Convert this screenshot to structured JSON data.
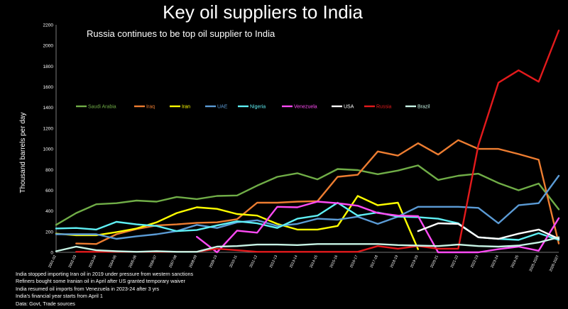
{
  "title": "Key oil suppliers to India",
  "subtitle": "Russia continues to be top oil supplier to India",
  "notes": [
    "India stopped importing Iran oil in 2019 under pressure from western sanctions",
    "Refiners bought some Iranian oil in April after US granted temporary waiver",
    "India resumed oil imports from Venezuela in 2023-24 after 3 yrs",
    "India's financial year starts from April 1",
    "Data: Govt, Trade sources"
  ],
  "chart_data": {
    "type": "line",
    "title": "Key oil suppliers to India",
    "subtitle": "Russia continues to be top oil supplier to India",
    "xlabel": "",
    "ylabel": "Thousand barrels per day",
    "ylim": [
      0,
      2200
    ],
    "yticks": [
      0,
      200,
      400,
      600,
      800,
      1000,
      1200,
      1400,
      1600,
      1800,
      2000,
      2200
    ],
    "grid": false,
    "legend_position": "top-left",
    "categories": [
      "2001-02",
      "2002-03",
      "2003-04",
      "2004-05",
      "2005-06",
      "2006-07",
      "2007-08",
      "2008-09",
      "2009-10",
      "2010-11",
      "2011-12",
      "2012-13",
      "2013-14",
      "2014-15",
      "2015-16",
      "2016-17",
      "2017-18",
      "2018-19",
      "2019-20",
      "2020-21",
      "2021-22",
      "2022-23",
      "2023-24",
      "2024-25",
      "2025-2026",
      "2026-2027"
    ],
    "series": [
      {
        "name": "Saudi Arabia",
        "color": "#70ad47",
        "values": [
          265,
          380,
          465,
          475,
          500,
          490,
          535,
          515,
          545,
          550,
          645,
          730,
          765,
          705,
          805,
          795,
          755,
          790,
          840,
          700,
          740,
          760,
          670,
          600,
          665,
          415
        ]
      },
      {
        "name": "Iraq",
        "color": "#ed7d31",
        "values": [
          null,
          85,
          80,
          175,
          225,
          260,
          270,
          285,
          290,
          320,
          480,
          480,
          490,
          495,
          730,
          750,
          975,
          935,
          1055,
          945,
          1085,
          1000,
          1000,
          950,
          895,
          85
        ]
      },
      {
        "name": "Iran",
        "color": "#ffff00",
        "values": [
          180,
          165,
          165,
          195,
          230,
          290,
          380,
          435,
          420,
          370,
          355,
          275,
          220,
          220,
          255,
          545,
          455,
          480,
          30,
          null,
          null,
          null,
          null,
          null,
          null,
          25
        ]
      },
      {
        "name": "UAE",
        "color": "#5b9bd5",
        "values": [
          175,
          175,
          175,
          130,
          155,
          175,
          205,
          265,
          235,
          290,
          310,
          255,
          275,
          325,
          315,
          345,
          275,
          345,
          440,
          440,
          440,
          430,
          280,
          455,
          475,
          740
        ]
      },
      {
        "name": "Nigeria",
        "color": "#5ff0f5",
        "values": [
          230,
          235,
          220,
          295,
          270,
          255,
          205,
          215,
          260,
          300,
          280,
          235,
          325,
          355,
          480,
          355,
          385,
          345,
          340,
          325,
          280,
          145,
          130,
          120,
          185,
          120
        ]
      },
      {
        "name": "Venezuela",
        "color": "#ff4bf5",
        "values": [
          null,
          null,
          null,
          null,
          null,
          null,
          null,
          150,
          0,
          210,
          190,
          440,
          435,
          490,
          475,
          450,
          380,
          355,
          350,
          0,
          0,
          0,
          30,
          55,
          15,
          330
        ]
      },
      {
        "name": "USA",
        "color": "#ffffff",
        "values": [
          null,
          null,
          null,
          null,
          null,
          null,
          null,
          null,
          null,
          null,
          null,
          null,
          null,
          null,
          null,
          null,
          null,
          null,
          205,
          280,
          275,
          145,
          130,
          180,
          220,
          130
        ]
      },
      {
        "name": "Russia",
        "color": "#e31a1c",
        "values": [
          null,
          5,
          5,
          5,
          5,
          5,
          5,
          5,
          35,
          20,
          5,
          5,
          5,
          5,
          5,
          5,
          60,
          35,
          60,
          35,
          35,
          1035,
          1640,
          1760,
          1650,
          2145
        ]
      },
      {
        "name": "Brazil",
        "color": "#c8f5e6",
        "values": [
          10,
          55,
          20,
          10,
          5,
          10,
          5,
          5,
          55,
          60,
          75,
          75,
          70,
          80,
          80,
          80,
          80,
          70,
          65,
          60,
          75,
          60,
          55,
          65,
          95,
          145
        ]
      }
    ]
  }
}
